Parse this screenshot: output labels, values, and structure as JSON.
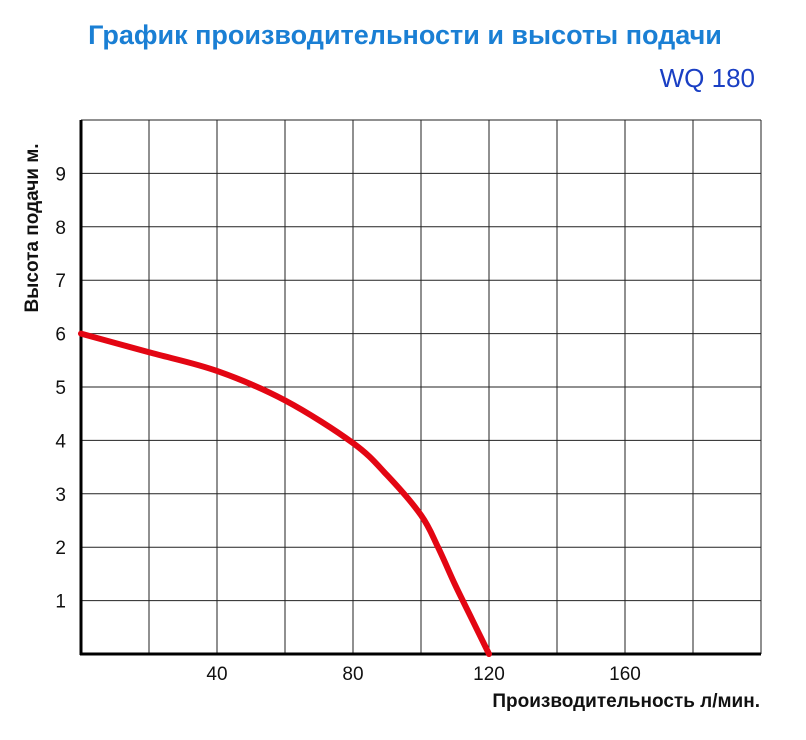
{
  "chart_data": {
    "type": "line",
    "title": "График производительности и высоты подачи",
    "subtitle": "WQ 180",
    "xlabel": "Производительность л/мин.",
    "ylabel": "Высота подачи м.",
    "xlim": [
      0,
      200
    ],
    "ylim": [
      0,
      10
    ],
    "x_ticks": [
      40,
      80,
      120,
      160
    ],
    "y_ticks": [
      1,
      2,
      3,
      4,
      5,
      6,
      7,
      8,
      9
    ],
    "x_grid_step": 20,
    "y_grid_step": 1,
    "grid": true,
    "series": [
      {
        "x": [
          0,
          20,
          40,
          60,
          80,
          90,
          100,
          105,
          110,
          115,
          120
        ],
        "y": [
          6.0,
          5.65,
          5.3,
          4.75,
          3.95,
          3.35,
          2.6,
          2.0,
          1.3,
          0.65,
          0.0
        ]
      }
    ]
  },
  "colors": {
    "title": "#1a7fd4",
    "subtitle": "#1a3fc4",
    "curve": "#e30613",
    "grid": "#222222",
    "axis": "#000000"
  }
}
